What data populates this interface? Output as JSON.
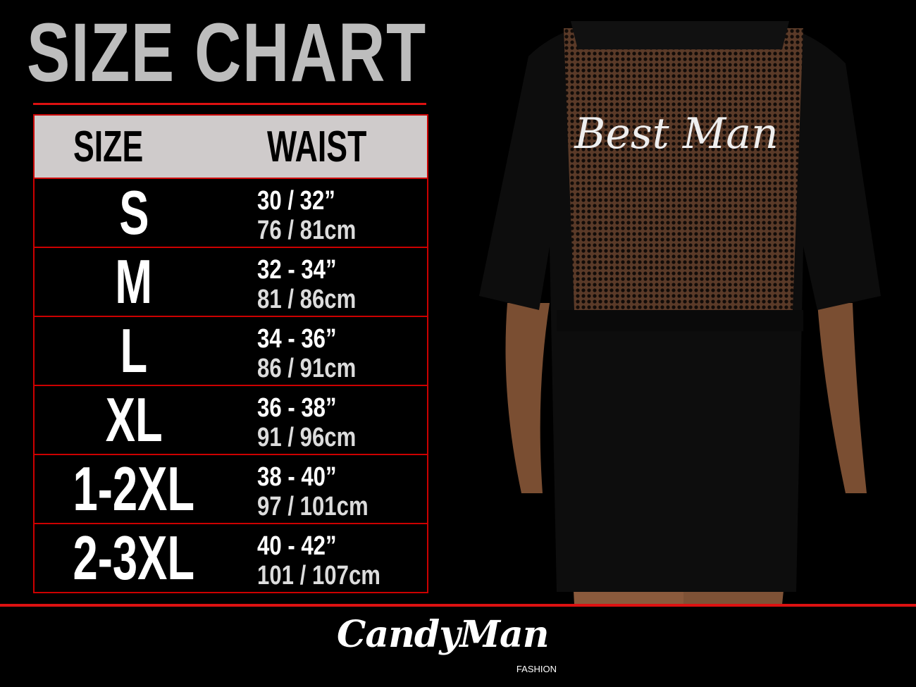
{
  "title": "SIZE CHART",
  "table": {
    "headers": {
      "size": "SIZE",
      "waist": "WAIST"
    },
    "rows": [
      {
        "size": "S",
        "inches": "30 / 32”",
        "cm": "76 / 81cm"
      },
      {
        "size": "M",
        "inches": "32 - 34”",
        "cm": "81 / 86cm"
      },
      {
        "size": "L",
        "inches": "34 - 36”",
        "cm": "86 / 91cm"
      },
      {
        "size": "XL",
        "inches": "36 - 38”",
        "cm": "91 / 96cm"
      },
      {
        "size": "1-2XL",
        "inches": "38 - 40”",
        "cm": "97 / 101cm"
      },
      {
        "size": "2-3XL",
        "inches": "40 - 42”",
        "cm": "101 / 107cm"
      }
    ]
  },
  "product": {
    "print_text": "Best Man"
  },
  "brand": {
    "name": "CandyMan",
    "sub": "FASHION"
  },
  "colors": {
    "accent": "#dd1111",
    "header_bg": "#cfcbcb",
    "title": "#bdbdbd"
  }
}
